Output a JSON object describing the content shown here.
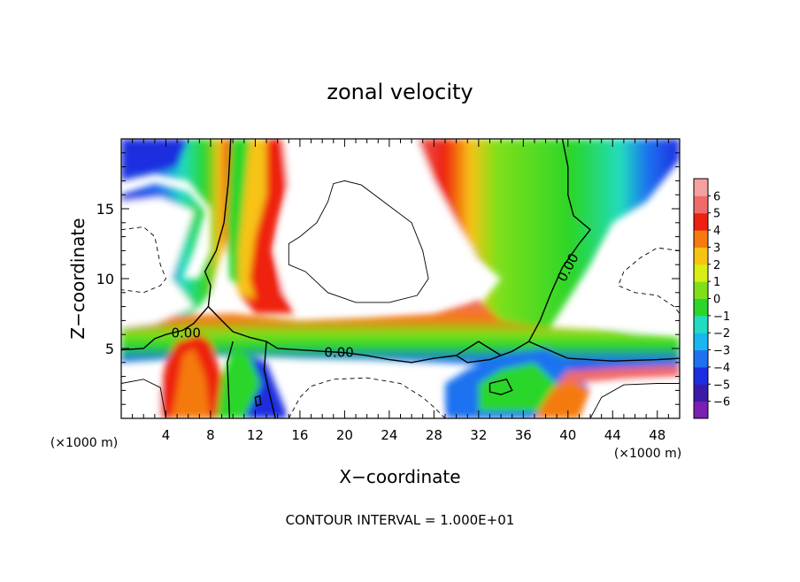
{
  "chart_data": {
    "type": "heatmap",
    "title": "zonal velocity",
    "xlabel": "X−coordinate",
    "ylabel": "Z−coordinate",
    "x_unit": "(×1000 m)",
    "z_unit": "(×1000 m)",
    "xlim": [
      0,
      50
    ],
    "ylim": [
      0,
      20
    ],
    "x_ticks": [
      4,
      8,
      12,
      16,
      20,
      24,
      28,
      32,
      36,
      40,
      44,
      48
    ],
    "y_ticks": [
      5,
      10,
      15
    ],
    "colorbar": {
      "min": -6,
      "max": 6,
      "tick_values": [
        6,
        5,
        4,
        3,
        2,
        1,
        0,
        -1,
        -2,
        -3,
        -4,
        -5,
        -6
      ],
      "tick_labels": [
        "6",
        "5",
        "4",
        "3",
        "2",
        "1",
        "0",
        "−1",
        "−2",
        "−3",
        "−4",
        "−5",
        "−6"
      ],
      "colors": [
        "#7a1fb0",
        "#3a1aa8",
        "#1c2de0",
        "#1e72f0",
        "#19b6f2",
        "#20dcc0",
        "#2ad62a",
        "#7fe01a",
        "#d8ee14",
        "#f7c312",
        "#f57a10",
        "#ee2010",
        "#f06a6a",
        "#f4a0a0"
      ]
    },
    "contour_labels": [
      {
        "text": "0.00",
        "x": 5.8,
        "z": 6.1
      },
      {
        "text": "0.00",
        "x": 19.5,
        "z": 4.7
      },
      {
        "text": "0.00",
        "x": 40.0,
        "z": 10.8
      }
    ],
    "annotation": "CONTOUR INTERVAL = 1.000E+01",
    "grid": false,
    "legend_placement": "right"
  }
}
